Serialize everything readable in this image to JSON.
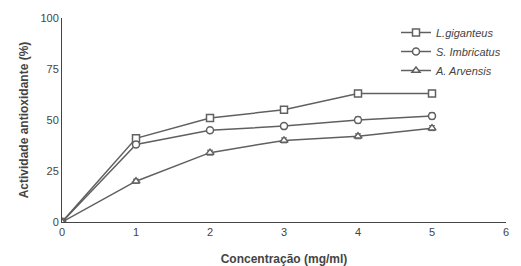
{
  "chart_data": {
    "type": "line",
    "xlabel": "Concentração (mg/ml)",
    "ylabel": "Actividade antioxidante (%)",
    "x": [
      0,
      1,
      2,
      3,
      4,
      5
    ],
    "series": [
      {
        "name": "L.giganteus",
        "color": "#606060",
        "marker": "square",
        "values": [
          0,
          41,
          51,
          55,
          63,
          63
        ],
        "errors": [
          0,
          1.2,
          1.2,
          1.5,
          1.5,
          1.5
        ]
      },
      {
        "name": "S. Imbricatus",
        "color": "#606060",
        "marker": "circle",
        "values": [
          0,
          38,
          45,
          47,
          50,
          52
        ],
        "errors": [
          0,
          1.2,
          1.2,
          1.2,
          1.5,
          1.5
        ]
      },
      {
        "name": "A. Arvensis",
        "color": "#606060",
        "marker": "triangle",
        "values": [
          0,
          20,
          34,
          40,
          42,
          46
        ],
        "errors": [
          0,
          1.0,
          1.2,
          1.2,
          1.2,
          1.2
        ]
      }
    ],
    "xlim": [
      0,
      6
    ],
    "ylim": [
      0,
      100
    ],
    "xticks": [
      0,
      1,
      2,
      3,
      4,
      5,
      6
    ],
    "yticks": [
      0,
      25,
      50,
      75,
      100
    ],
    "grid": false,
    "legend": "upper right"
  }
}
